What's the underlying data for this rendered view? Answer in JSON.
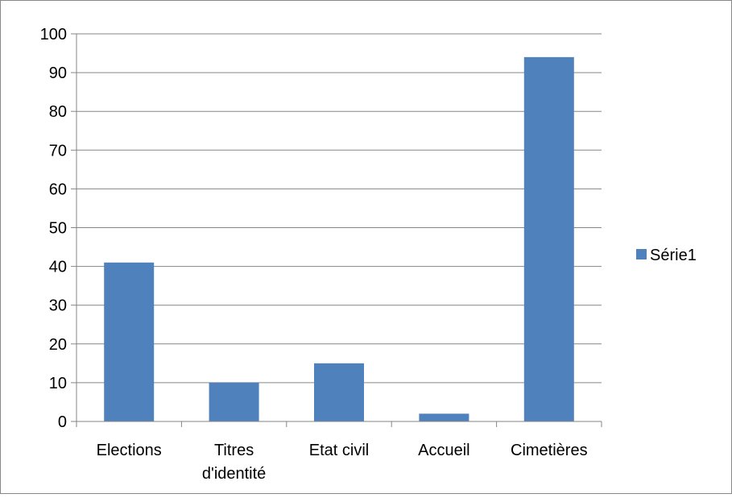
{
  "chart_data": {
    "type": "bar",
    "categories": [
      [
        "Elections"
      ],
      [
        "Titres",
        "d'identité"
      ],
      [
        "Etat civil"
      ],
      [
        "Accueil"
      ],
      [
        "Cimetières"
      ]
    ],
    "series": [
      {
        "name": "Série1",
        "values": [
          41,
          10,
          15,
          2,
          94
        ],
        "color": "#4F81BD"
      }
    ],
    "title": "",
    "xlabel": "",
    "ylabel": "",
    "ylim": [
      0,
      100
    ],
    "yticks": [
      "0",
      "10",
      "20",
      "30",
      "40",
      "50",
      "60",
      "70",
      "80",
      "90",
      "100"
    ],
    "grid": true,
    "legend_position": "right"
  }
}
